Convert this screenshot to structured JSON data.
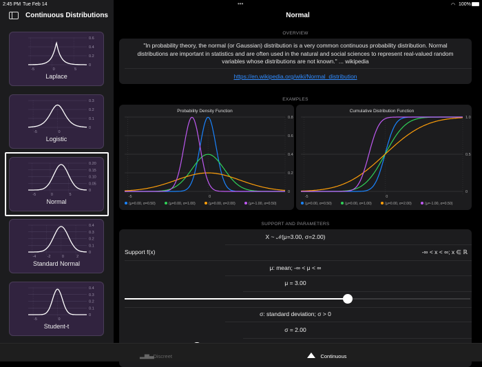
{
  "status_bar": {
    "time": "2:45 PM",
    "date": "Tue Feb 14",
    "battery": "100%",
    "wifi_icon": "wifi-icon",
    "battery_icon": "battery-icon",
    "multitask": "•••"
  },
  "sidebar": {
    "title": "Continuous Distributions",
    "toggle_icon": "sidebar-toggle-icon",
    "selected": "Normal",
    "items": [
      {
        "label": "Laplace",
        "kind": "laplace",
        "xticks": [
          "-5",
          "0",
          "5"
        ],
        "yticks": [
          "0.6",
          "0.4",
          "0.2",
          "0"
        ]
      },
      {
        "label": "Logistic",
        "kind": "logistic",
        "xticks": [
          "-5",
          "0"
        ],
        "yticks": [
          "0.3",
          "0.2",
          "0.1",
          "0"
        ]
      },
      {
        "label": "Normal",
        "kind": "normal",
        "xticks": [
          "-5",
          "0",
          "5"
        ],
        "yticks": [
          "0.20",
          "0.15",
          "0.10",
          "0.05",
          "0"
        ]
      },
      {
        "label": "Standard Normal",
        "kind": "stdnormal",
        "xticks": [
          "-4",
          "-2",
          "0",
          "2"
        ],
        "yticks": [
          "0.4",
          "0.3",
          "0.2",
          "0.1",
          "0"
        ]
      },
      {
        "label": "Student-t",
        "kind": "studentt",
        "xticks": [
          "-5",
          "0"
        ],
        "yticks": [
          "0.4",
          "0.3",
          "0.2",
          "0.1",
          "0"
        ]
      }
    ]
  },
  "header": {
    "title": "Normal"
  },
  "overview": {
    "section": "OVERVIEW",
    "quote": "\"In probability theory, the normal (or Gaussian) distribution is a very common continuous probability distribution. Normal distributions are important in statistics and are often used in the natural and social sciences to represent real-valued random variables whose distributions are not known.\" ... wikipedia",
    "link": "https://en.wikipedia.org/wiki/Normal_distribution"
  },
  "examples": {
    "section": "EXAMPLES"
  },
  "chart_data": [
    {
      "type": "line",
      "title": "Probability Density Function",
      "function": "pdf",
      "xlim": [
        -5.2,
        4.8
      ],
      "ylim": [
        0,
        0.8
      ],
      "xticks": [
        "-5",
        "0"
      ],
      "yticks": [
        "0.8",
        "0.6",
        "0.4",
        "0.2",
        "0"
      ],
      "grid": true,
      "legend": "bottom",
      "series": [
        {
          "name": "(μ=0.00, σ=0.50)",
          "mu": 0,
          "sigma": 0.5,
          "color": "#1a84ff"
        },
        {
          "name": "(μ=0.00, σ=1.00)",
          "mu": 0,
          "sigma": 1,
          "color": "#30d158"
        },
        {
          "name": "(μ=0.00, σ=2.00)",
          "mu": 0,
          "sigma": 2,
          "color": "#ff9f0a"
        },
        {
          "name": "(μ=-1.00, σ=0.50)",
          "mu": -1,
          "sigma": 0.5,
          "color": "#bf5af2"
        }
      ]
    },
    {
      "type": "line",
      "title": "Cumulative Distribution Function",
      "function": "cdf",
      "xlim": [
        -5.2,
        4.8
      ],
      "ylim": [
        0,
        1
      ],
      "xticks": [
        "-5",
        "0"
      ],
      "yticks": [
        "1.0",
        "0.5",
        "0"
      ],
      "grid": true,
      "legend": "bottom",
      "series": [
        {
          "name": "(μ=0.00, σ=0.50)",
          "mu": 0,
          "sigma": 0.5,
          "color": "#1a84ff"
        },
        {
          "name": "(μ=0.00, σ=1.00)",
          "mu": 0,
          "sigma": 1,
          "color": "#30d158"
        },
        {
          "name": "(μ=0.00, σ=2.00)",
          "mu": 0,
          "sigma": 2,
          "color": "#ff9f0a"
        },
        {
          "name": "(μ=-1.00, σ=0.50)",
          "mu": -1,
          "sigma": 0.5,
          "color": "#bf5af2"
        }
      ]
    }
  ],
  "params": {
    "section": "SUPPORT AND PARAMETERS",
    "formula": "X ~ 𝒩(μ=3.00, σ=2.00)",
    "support_label": "Support f(x)",
    "support_value": "-∞ < x < ∞; x ∈ ℝ",
    "mu_desc": "μ: mean; -∞ < μ < ∞",
    "mu_value": "μ = 3.00",
    "mu_slider_fraction": 0.645,
    "sigma_desc": "σ: standard deviation; σ > 0",
    "sigma_value": "σ = 2.00",
    "sigma_slider_fraction": 0.21
  },
  "tabbar": {
    "tabs": [
      {
        "label": "Discreet",
        "icon": "bar-chart-icon",
        "active": false
      },
      {
        "label": "Continuous",
        "icon": "triangle-icon",
        "active": true
      }
    ]
  }
}
